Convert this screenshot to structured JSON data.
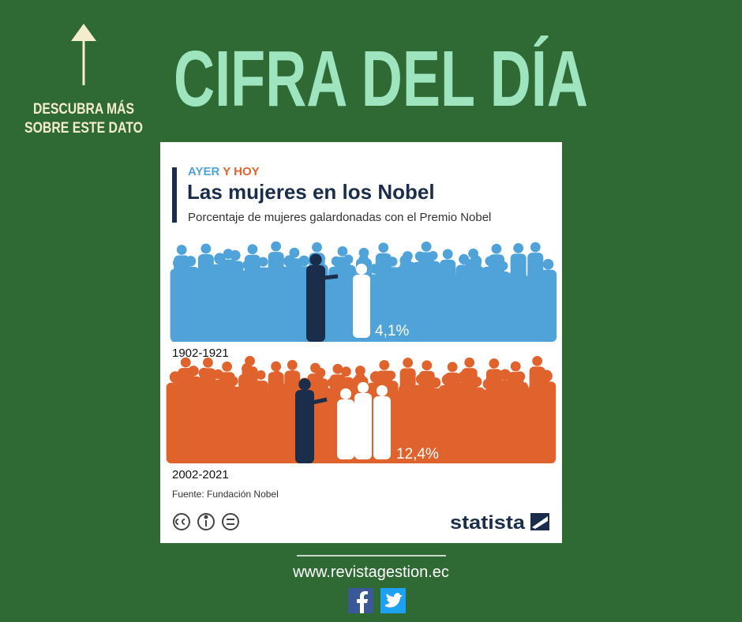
{
  "header": {
    "title": "CIFRA DEL DÍA",
    "link_hint": [
      "DESCUBRA MÁS",
      "SOBRE ESTE DATO"
    ]
  },
  "card": {
    "kicker": [
      "AYER",
      "Y HOY"
    ],
    "title": "Las mujeres en los Nobel",
    "subtitle": "Porcentaje de mujeres galardonadas con el Premio Nobel",
    "panels": [
      {
        "period": "1902-1921",
        "share": "4,1%"
      },
      {
        "period": "2002-2021",
        "share": "12,4%"
      }
    ],
    "source": "Fuente: Fundación Nobel",
    "brand": "statista"
  },
  "footer": {
    "url": "www.revistagestion.ec"
  }
}
